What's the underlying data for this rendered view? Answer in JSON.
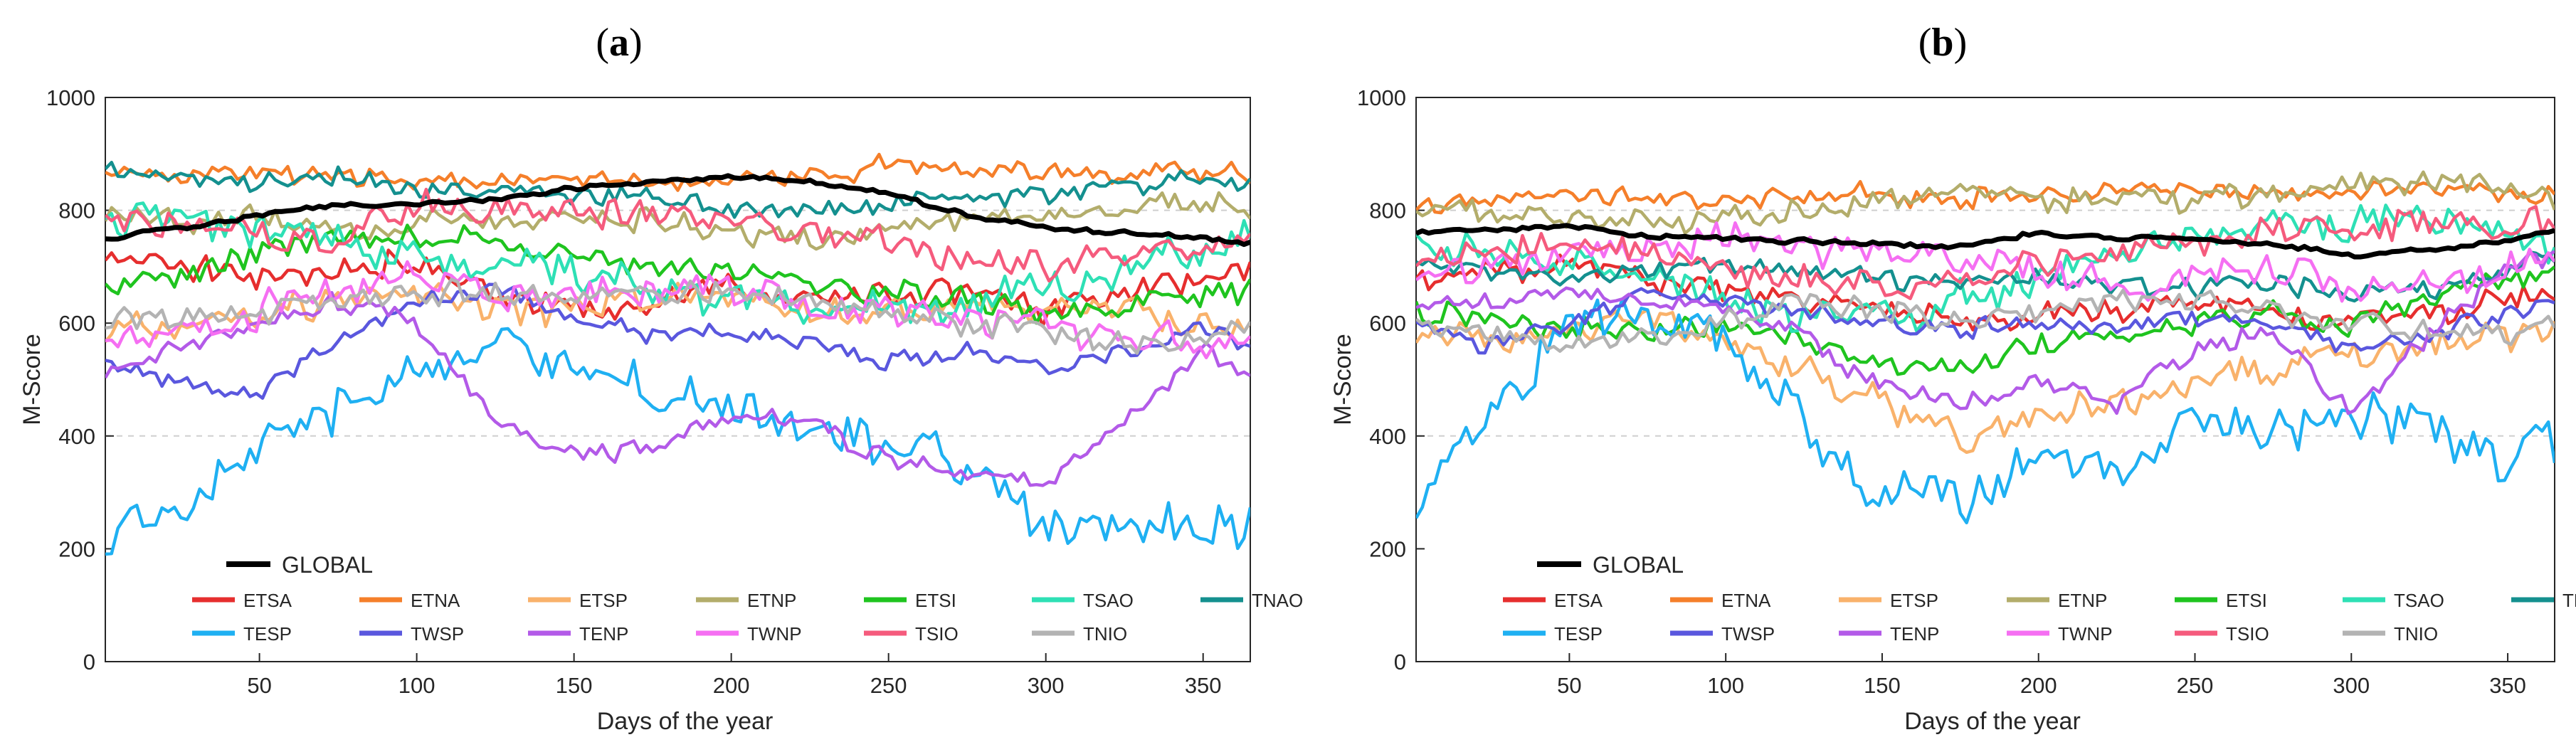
{
  "chart_data": [
    {
      "panel": "(a)",
      "panel_letter": "a",
      "type": "line",
      "title": "",
      "xlabel": "Days of the year",
      "ylabel": "M-Score",
      "xlim": [
        1,
        365
      ],
      "ylim": [
        0,
        1000
      ],
      "xticks": [
        50,
        100,
        150,
        200,
        250,
        300,
        350
      ],
      "yticks": [
        0,
        200,
        400,
        600,
        800,
        1000
      ],
      "grid": "dashed horizontal at 400 and 800",
      "legend_position": "bottom",
      "x": [
        1,
        25,
        50,
        75,
        100,
        125,
        150,
        175,
        200,
        225,
        250,
        275,
        300,
        325,
        350,
        365
      ],
      "series": [
        {
          "name": "ETSA",
          "values": [
            720,
            700,
            680,
            690,
            710,
            650,
            620,
            640,
            660,
            640,
            650,
            660,
            620,
            650,
            680,
            700
          ]
        },
        {
          "name": "ETNA",
          "values": [
            870,
            860,
            870,
            860,
            855,
            850,
            860,
            855,
            850,
            860,
            880,
            875,
            870,
            860,
            870,
            865
          ]
        },
        {
          "name": "ETSP",
          "values": [
            600,
            590,
            620,
            640,
            650,
            630,
            620,
            650,
            640,
            630,
            620,
            640,
            630,
            620,
            600,
            580
          ]
        },
        {
          "name": "ETNP",
          "values": [
            800,
            780,
            790,
            760,
            780,
            790,
            790,
            780,
            760,
            750,
            760,
            780,
            790,
            800,
            810,
            800
          ]
        },
        {
          "name": "ETSI",
          "values": [
            660,
            690,
            720,
            750,
            760,
            740,
            720,
            700,
            690,
            670,
            650,
            640,
            620,
            630,
            650,
            660
          ]
        },
        {
          "name": "TSAO",
          "values": [
            780,
            790,
            770,
            740,
            720,
            700,
            690,
            660,
            640,
            630,
            620,
            640,
            660,
            700,
            740,
            760
          ]
        },
        {
          "name": "TNAO",
          "values": [
            880,
            860,
            850,
            860,
            840,
            830,
            830,
            820,
            800,
            800,
            810,
            820,
            830,
            840,
            860,
            850
          ]
        },
        {
          "name": "TESP",
          "values": [
            220,
            260,
            380,
            440,
            520,
            560,
            520,
            480,
            440,
            420,
            380,
            360,
            250,
            240,
            230,
            230
          ]
        },
        {
          "name": "TWSP",
          "values": [
            520,
            500,
            470,
            570,
            640,
            660,
            610,
            580,
            590,
            560,
            530,
            550,
            520,
            550,
            590,
            560
          ]
        },
        {
          "name": "TENP",
          "values": [
            500,
            560,
            600,
            640,
            600,
            420,
            370,
            380,
            440,
            420,
            360,
            330,
            320,
            430,
            550,
            500
          ]
        },
        {
          "name": "TWNP",
          "values": [
            560,
            580,
            620,
            660,
            680,
            650,
            640,
            660,
            650,
            640,
            620,
            600,
            590,
            580,
            570,
            570
          ]
        },
        {
          "name": "TSIO",
          "values": [
            800,
            780,
            760,
            750,
            820,
            800,
            790,
            800,
            790,
            760,
            740,
            720,
            700,
            710,
            730,
            750
          ]
        },
        {
          "name": "TNIO",
          "values": [
            600,
            610,
            620,
            640,
            660,
            650,
            640,
            660,
            650,
            640,
            620,
            600,
            580,
            560,
            570,
            590
          ]
        },
        {
          "name": "GLOBAL",
          "values": [
            750,
            770,
            790,
            810,
            810,
            820,
            840,
            850,
            860,
            850,
            830,
            790,
            770,
            760,
            750,
            740
          ]
        }
      ]
    },
    {
      "panel": "(b)",
      "panel_letter": "b",
      "type": "line",
      "title": "",
      "xlabel": "Days of the year",
      "ylabel": "M-Score",
      "xlim": [
        1,
        365
      ],
      "ylim": [
        0,
        1000
      ],
      "xticks": [
        50,
        100,
        150,
        200,
        250,
        300,
        350
      ],
      "yticks": [
        0,
        200,
        400,
        600,
        800,
        1000
      ],
      "grid": "dashed horizontal at 400 and 800",
      "legend_position": "bottom",
      "x": [
        1,
        25,
        50,
        75,
        100,
        125,
        150,
        175,
        200,
        225,
        250,
        275,
        300,
        325,
        350,
        365
      ],
      "series": [
        {
          "name": "ETSA",
          "values": [
            680,
            690,
            700,
            680,
            660,
            640,
            620,
            600,
            610,
            620,
            640,
            620,
            600,
            620,
            650,
            660
          ]
        },
        {
          "name": "ETNA",
          "values": [
            810,
            820,
            830,
            820,
            820,
            830,
            830,
            820,
            830,
            840,
            840,
            830,
            830,
            840,
            830,
            830
          ]
        },
        {
          "name": "ETSP",
          "values": [
            580,
            570,
            590,
            600,
            560,
            520,
            460,
            400,
            430,
            460,
            500,
            520,
            540,
            560,
            580,
            600
          ]
        },
        {
          "name": "ETNP",
          "values": [
            800,
            790,
            780,
            780,
            790,
            800,
            820,
            830,
            820,
            810,
            820,
            830,
            840,
            850,
            840,
            820
          ]
        },
        {
          "name": "ETSI",
          "values": [
            620,
            600,
            580,
            590,
            600,
            560,
            520,
            520,
            560,
            580,
            600,
            620,
            600,
            640,
            680,
            700
          ]
        },
        {
          "name": "TSAO",
          "values": [
            740,
            720,
            700,
            680,
            640,
            620,
            600,
            640,
            680,
            720,
            760,
            780,
            780,
            790,
            760,
            740
          ]
        },
        {
          "name": "TNAO",
          "values": [
            700,
            690,
            680,
            690,
            700,
            690,
            680,
            670,
            680,
            670,
            660,
            670,
            650,
            660,
            700,
            720
          ]
        },
        {
          "name": "TESP",
          "values": [
            300,
            460,
            580,
            620,
            560,
            420,
            300,
            280,
            380,
            330,
            420,
            420,
            440,
            400,
            360,
            400
          ]
        },
        {
          "name": "TWSP",
          "values": [
            600,
            560,
            600,
            650,
            640,
            620,
            600,
            590,
            600,
            600,
            610,
            600,
            560,
            580,
            620,
            640
          ]
        },
        {
          "name": "TENP",
          "values": [
            640,
            640,
            660,
            640,
            620,
            580,
            480,
            460,
            500,
            460,
            560,
            580,
            440,
            580,
            700,
            720
          ]
        },
        {
          "name": "TWNP",
          "values": [
            680,
            700,
            720,
            740,
            760,
            740,
            720,
            700,
            690,
            660,
            680,
            700,
            660,
            680,
            700,
            720
          ]
        },
        {
          "name": "TSIO",
          "values": [
            720,
            730,
            740,
            720,
            700,
            680,
            660,
            680,
            700,
            720,
            740,
            760,
            760,
            770,
            780,
            770
          ]
        },
        {
          "name": "TNIO",
          "values": [
            600,
            590,
            560,
            580,
            600,
            640,
            620,
            600,
            620,
            640,
            640,
            620,
            600,
            590,
            580,
            590
          ]
        },
        {
          "name": "GLOBAL",
          "values": [
            760,
            765,
            770,
            755,
            750,
            745,
            740,
            735,
            760,
            750,
            750,
            740,
            720,
            730,
            745,
            765
          ]
        }
      ]
    }
  ],
  "series_colors": {
    "ETSA": "#e62e2e",
    "ETNA": "#f57f2a",
    "ETSP": "#f9b26b",
    "ETNP": "#b3ad6b",
    "ETSI": "#1fc41f",
    "TSAO": "#2ee0b5",
    "TNAO": "#14908f",
    "TESP": "#1fb0f2",
    "TWSP": "#5a57de",
    "TENP": "#b35ae8",
    "TWNP": "#f56ff2",
    "TSIO": "#f55b7d",
    "TNIO": "#b3b3b3",
    "GLOBAL": "#000000"
  },
  "legend_rows": [
    [
      "ETSA",
      "ETNA",
      "ETSP",
      "ETNP",
      "ETSI",
      "TSAO",
      "TNAO"
    ],
    [
      "TESP",
      "TWSP",
      "TENP",
      "TWNP",
      "TSIO",
      "TNIO"
    ]
  ]
}
